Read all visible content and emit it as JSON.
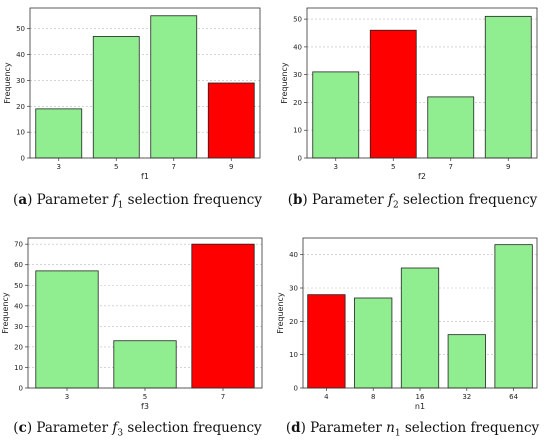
{
  "colors": {
    "normal": "#90ee90",
    "highlight": "#ff0000",
    "edge": "#222222",
    "grid": "#bbbbbb"
  },
  "chart_data": [
    {
      "type": "bar",
      "categories": [
        "3",
        "5",
        "7",
        "9"
      ],
      "values": [
        19,
        47,
        55,
        29
      ],
      "highlight_index": 3,
      "xlabel": "f1",
      "ylabel": "Frequency",
      "yticks": [
        0,
        10,
        20,
        30,
        40,
        50
      ],
      "ylim": [
        0,
        58
      ],
      "grid": "y-dashed",
      "caption": {
        "letter": "a",
        "prefix": "Parameter",
        "var": "f",
        "sub": "1",
        "suffix": "selection frequency"
      }
    },
    {
      "type": "bar",
      "categories": [
        "3",
        "5",
        "7",
        "9"
      ],
      "values": [
        31,
        46,
        22,
        51
      ],
      "highlight_index": 1,
      "xlabel": "f2",
      "ylabel": "Frequency",
      "yticks": [
        0,
        10,
        20,
        30,
        40,
        50
      ],
      "ylim": [
        0,
        54
      ],
      "grid": "y-dashed",
      "caption": {
        "letter": "b",
        "prefix": "Parameter",
        "var": "f",
        "sub": "2",
        "suffix": "selection frequency"
      }
    },
    {
      "type": "bar",
      "categories": [
        "3",
        "5",
        "7"
      ],
      "values": [
        57,
        23,
        70
      ],
      "highlight_index": 2,
      "xlabel": "f3",
      "ylabel": "Frequency",
      "yticks": [
        0,
        10,
        20,
        30,
        40,
        50,
        60,
        70
      ],
      "ylim": [
        0,
        73
      ],
      "grid": "y-dashed",
      "caption": {
        "letter": "c",
        "prefix": "Parameter",
        "var": "f",
        "sub": "3",
        "suffix": "selection frequency"
      }
    },
    {
      "type": "bar",
      "categories": [
        "4",
        "8",
        "16",
        "32",
        "64"
      ],
      "values": [
        28,
        27,
        36,
        16,
        43
      ],
      "highlight_index": 0,
      "xlabel": "n1",
      "ylabel": "Frequency",
      "yticks": [
        0,
        10,
        20,
        30,
        40
      ],
      "ylim": [
        0,
        45
      ],
      "grid": "y-dashed",
      "caption": {
        "letter": "d",
        "prefix": "Parameter",
        "var": "n",
        "sub": "1",
        "suffix": "selection frequency"
      }
    }
  ]
}
